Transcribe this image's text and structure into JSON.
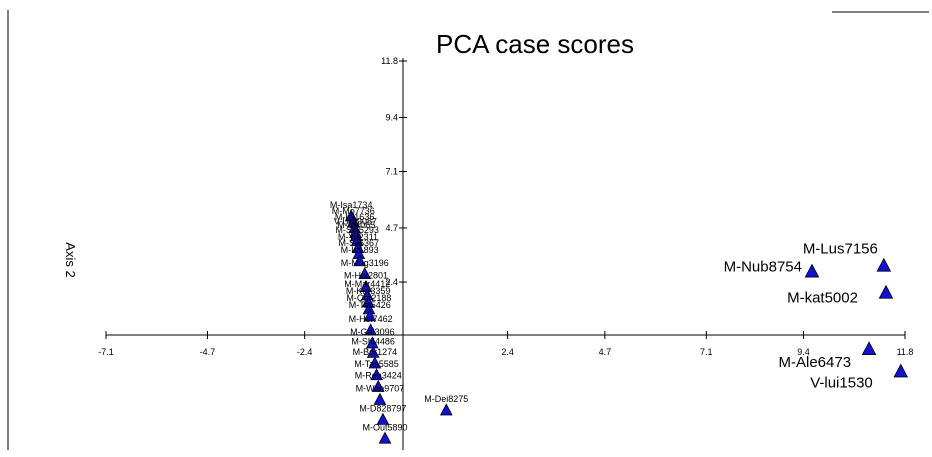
{
  "chart_data": {
    "type": "scatter",
    "title": "PCA case scores",
    "xlabel": "",
    "ylabel": "Axis 2",
    "xlim": [
      -7.1,
      11.8
    ],
    "ylim": [
      -4.7,
      11.8
    ],
    "x_ticks": [
      "-7.1",
      "-4.7",
      "-2.4",
      "2.4",
      "4.7",
      "7.1",
      "9.4",
      "11.8"
    ],
    "y_ticks": [
      "11.8",
      "9.4",
      "7.1",
      "4.7",
      "2.4"
    ],
    "marker": "triangle",
    "marker_color": "#1010d8",
    "points": [
      {
        "label": "M-Isa1734",
        "x": -1.3,
        "y": 5.2
      },
      {
        "label": "M-Mo7736",
        "x": -1.25,
        "y": 4.95
      },
      {
        "label": "M-Isl1636",
        "x": -1.22,
        "y": 4.7
      },
      {
        "label": "V-Uro9087",
        "x": -1.2,
        "y": 4.5
      },
      {
        "label": "M-Iri4065",
        "x": -1.18,
        "y": 4.35
      },
      {
        "label": "M-Sin5293",
        "x": -1.16,
        "y": 4.15
      },
      {
        "label": "M-Ya2311",
        "x": -1.14,
        "y": 3.85
      },
      {
        "label": "M-Sli6367",
        "x": -1.12,
        "y": 3.6
      },
      {
        "label": "M-Iri1893",
        "x": -1.1,
        "y": 3.3
      },
      {
        "label": "M-Mug3196",
        "x": -0.98,
        "y": 2.75
      },
      {
        "label": "M-Hol2801",
        "x": -0.95,
        "y": 2.2
      },
      {
        "label": "M-Mar4412",
        "x": -0.92,
        "y": 1.85
      },
      {
        "label": "M-Ker3359",
        "x": -0.9,
        "y": 1.55
      },
      {
        "label": "M-Cor2188",
        "x": -0.88,
        "y": 1.25
      },
      {
        "label": "M-Tal5426",
        "x": -0.86,
        "y": 0.95
      },
      {
        "label": "M-Hol7462",
        "x": -0.84,
        "y": 0.35
      },
      {
        "label": "M-Gal3096",
        "x": -0.8,
        "y": -0.2
      },
      {
        "label": "M-Shi4486",
        "x": -0.78,
        "y": -0.6
      },
      {
        "label": "M-Bor1274",
        "x": -0.74,
        "y": -1.05
      },
      {
        "label": "M-Tas5585",
        "x": -0.7,
        "y": -1.55
      },
      {
        "label": "M-Ren3424",
        "x": -0.66,
        "y": -2.05
      },
      {
        "label": "M-Wan9707",
        "x": -0.62,
        "y": -2.6
      },
      {
        "label": "M-Dei8275",
        "x": 0.95,
        "y": -3.05
      },
      {
        "label": "M-D828797",
        "x": -0.55,
        "y": -3.45
      },
      {
        "label": "M-Out5890",
        "x": -0.5,
        "y": -4.25
      }
    ],
    "annotations": [
      {
        "label": "M-Lus7156",
        "x": 11.3,
        "y": 3.1
      },
      {
        "label": "M-Nub8754",
        "x": 9.6,
        "y": 2.85
      },
      {
        "label": "M-kat5002",
        "x": 11.35,
        "y": 1.95
      },
      {
        "label": "M-Ale6473",
        "x": 10.95,
        "y": -0.45
      },
      {
        "label": "V-lui1530",
        "x": 11.7,
        "y": -1.4
      }
    ]
  }
}
